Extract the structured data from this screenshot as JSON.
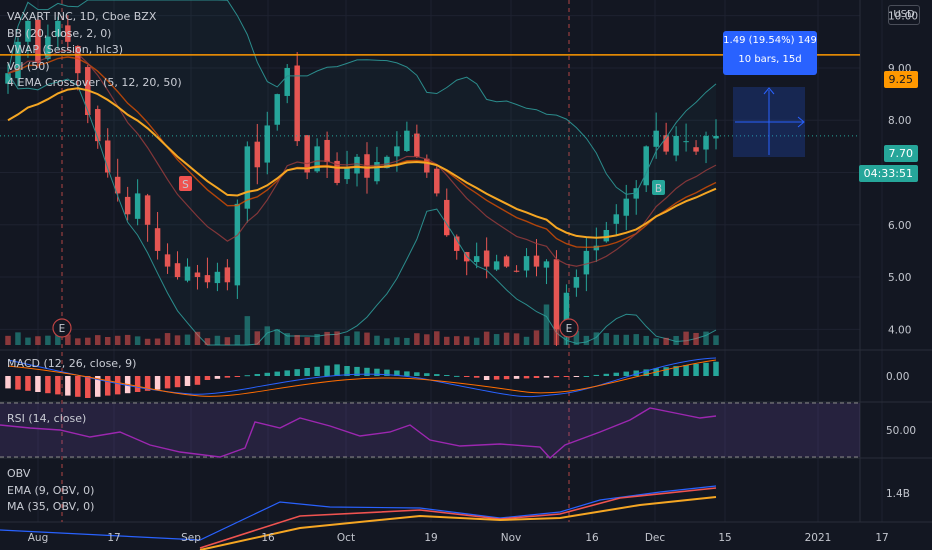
{
  "symbol": {
    "title": "VAXART INC, 1D, Cboe BZX"
  },
  "legend": {
    "bb": "BB (20, close, 2, 0)",
    "vwap": "VWAP (Session, hlc3)",
    "vol": "Vol (50)",
    "ema_crossover": "4 EMA Crossover (5, 12, 20, 50)"
  },
  "currency_button": "USD",
  "price_axis": {
    "ticks": [
      "10.00",
      "9.00",
      "8.00",
      "7.00",
      "6.00",
      "5.00",
      "4.00"
    ]
  },
  "price_tags": {
    "level": "9.25",
    "last": "7.70",
    "countdown": "04:33:51"
  },
  "measure": {
    "line1": "1.49 (19.54%) 149",
    "line2": "10 bars, 15d"
  },
  "markers": {
    "earnings": "E",
    "sell": "S",
    "buy": "B"
  },
  "macd": {
    "title": "MACD (12, 26, close, 9)",
    "axis_label": "0.00"
  },
  "rsi": {
    "title": "RSI (14, close)",
    "axis_label": "50.00"
  },
  "obv": {
    "title": "OBV",
    "ema": "EMA (9, OBV, 0)",
    "ma": "MA (35, OBV, 0)",
    "axis_label": "1.4B"
  },
  "time_axis": {
    "labels": [
      "Aug",
      "17",
      "Sep",
      "16",
      "Oct",
      "19",
      "Nov",
      "16",
      "Dec",
      "15",
      "2021",
      "17"
    ]
  },
  "colors": {
    "bg": "#131722",
    "up": "#26a69a",
    "down": "#ef5350",
    "ema50": "#f5a623",
    "ema20": "#e65100",
    "bb": "#2b8c8c",
    "level": "#ff9800",
    "rsi": "#9c27b0",
    "tooltip": "#2962ff"
  },
  "chart_data": {
    "type": "candlestick",
    "price_range": [
      3.7,
      10.3
    ],
    "close_path": [
      8.9,
      9.5,
      9.9,
      9.1,
      9.6,
      9.9,
      9.5,
      8.9,
      8.1,
      7.6,
      7.0,
      6.6,
      6.2,
      6.6,
      6.0,
      5.5,
      5.2,
      5.0,
      5.2,
      5.0,
      4.9,
      5.1,
      4.9,
      6.4,
      7.5,
      7.1,
      7.9,
      8.5,
      9.0,
      7.6,
      7.0,
      7.5,
      7.2,
      6.8,
      7.1,
      7.3,
      6.9,
      7.2,
      7.3,
      7.5,
      7.8,
      7.3,
      7.0,
      6.6,
      5.8,
      5.5,
      5.3,
      5.4,
      5.2,
      5.3,
      5.2,
      5.1,
      5.4,
      5.2,
      5.3,
      4.0,
      4.7,
      5.0,
      5.5,
      5.6,
      5.9,
      6.2,
      6.5,
      6.7,
      7.5,
      7.8,
      7.4,
      7.7,
      7.6,
      7.4,
      7.7,
      7.7
    ],
    "level": 9.25,
    "last": 7.7
  }
}
